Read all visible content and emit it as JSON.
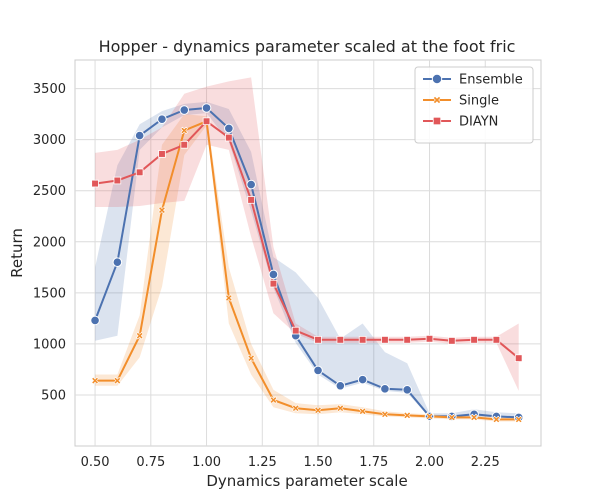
{
  "chart_data": {
    "type": "line",
    "title": "Hopper - dynamics parameter scaled at the foot fric",
    "xlabel": "Dynamics parameter scale",
    "ylabel": "Return",
    "xlim": [
      0.41,
      2.5
    ],
    "ylim": [
      0,
      3780
    ],
    "xticks": [
      0.5,
      0.75,
      1.0,
      1.25,
      1.5,
      1.75,
      2.0,
      2.25
    ],
    "xtick_labels": [
      "0.50",
      "0.75",
      "1.00",
      "1.25",
      "1.50",
      "1.75",
      "2.00",
      "2.25"
    ],
    "yticks": [
      500,
      1000,
      1500,
      2000,
      2500,
      3000,
      3500
    ],
    "ytick_labels": [
      "500",
      "1000",
      "1500",
      "2000",
      "2500",
      "3000",
      "3500"
    ],
    "grid": true,
    "legend_position": "top-right",
    "x": [
      0.5,
      0.6,
      0.7,
      0.8,
      0.9,
      1.0,
      1.1,
      1.2,
      1.3,
      1.4,
      1.5,
      1.6,
      1.7,
      1.8,
      1.9,
      2.0,
      2.1,
      2.2,
      2.3,
      2.4
    ],
    "series": [
      {
        "name": "Ensemble",
        "color": "#4c72b0",
        "marker": "circle",
        "values": [
          1230,
          1800,
          3040,
          3200,
          3290,
          3310,
          3110,
          2560,
          1680,
          1080,
          740,
          590,
          650,
          560,
          550,
          290,
          290,
          310,
          290,
          280
        ],
        "lower": [
          1030,
          1080,
          2900,
          3120,
          3240,
          3260,
          2980,
          2300,
          1550,
          1010,
          700,
          560,
          620,
          540,
          520,
          280,
          280,
          290,
          280,
          270
        ],
        "upper": [
          1750,
          2750,
          3150,
          3280,
          3350,
          3370,
          3300,
          2880,
          1850,
          1700,
          1450,
          1050,
          1200,
          920,
          810,
          320,
          320,
          360,
          330,
          320
        ]
      },
      {
        "name": "Single",
        "color": "#f28e2b",
        "marker": "x",
        "values": [
          640,
          640,
          1080,
          2310,
          3090,
          3180,
          1450,
          860,
          450,
          370,
          350,
          370,
          340,
          310,
          300,
          290,
          280,
          280,
          260,
          260
        ],
        "lower": [
          590,
          590,
          870,
          1560,
          2850,
          3140,
          1200,
          700,
          380,
          320,
          310,
          330,
          310,
          290,
          280,
          270,
          260,
          260,
          240,
          240
        ],
        "upper": [
          700,
          700,
          1280,
          2950,
          3250,
          3230,
          1750,
          1000,
          550,
          420,
          400,
          410,
          380,
          340,
          320,
          310,
          300,
          300,
          290,
          280
        ]
      },
      {
        "name": "DIAYN",
        "color": "#e15759",
        "marker": "square",
        "values": [
          2570,
          2600,
          2680,
          2860,
          2950,
          3180,
          3020,
          2410,
          1590,
          1130,
          1040,
          1040,
          1040,
          1040,
          1040,
          1050,
          1030,
          1040,
          1040,
          860
        ],
        "lower": [
          2340,
          2340,
          2350,
          2380,
          2400,
          2950,
          2900,
          2050,
          1300,
          1100,
          1010,
          1010,
          1010,
          1010,
          1010,
          1020,
          1000,
          1010,
          1010,
          540
        ],
        "upper": [
          2870,
          2900,
          3000,
          3120,
          3450,
          3520,
          3570,
          3610,
          1950,
          1200,
          1070,
          1070,
          1070,
          1070,
          1070,
          1080,
          1060,
          1070,
          1070,
          1200
        ]
      }
    ]
  }
}
